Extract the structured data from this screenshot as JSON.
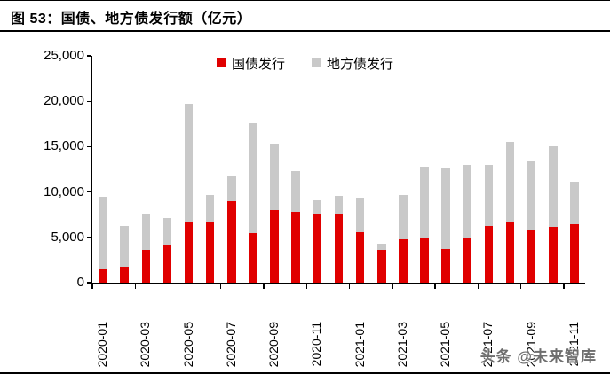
{
  "figure": {
    "title": "图 53：国债、地方债发行额（亿元）",
    "watermark": "头条 @未来智库"
  },
  "legend": [
    {
      "label": "国债发行",
      "color": "#e00000"
    },
    {
      "label": "地方债发行",
      "color": "#c9c9c9"
    }
  ],
  "chart_data": {
    "type": "bar",
    "stacked": true,
    "title": "图 53：国债、地方债发行额（亿元）",
    "unit": "亿元",
    "categories": [
      "2020-01",
      "2020-02",
      "2020-03",
      "2020-04",
      "2020-05",
      "2020-06",
      "2020-07",
      "2020-08",
      "2020-09",
      "2020-10",
      "2020-11",
      "2020-12",
      "2021-01",
      "2021-02",
      "2021-03",
      "2021-04",
      "2021-05",
      "2021-06",
      "2021-07",
      "2021-08",
      "2021-09",
      "2021-10",
      "2021-11"
    ],
    "series": [
      {
        "name": "国债发行",
        "color": "#e00000",
        "values": [
          1500,
          1800,
          3600,
          4200,
          6700,
          6750,
          8950,
          5500,
          8000,
          7800,
          7600,
          7650,
          5600,
          3600,
          4800,
          4850,
          3700,
          5000,
          6300,
          6600,
          5750,
          6200,
          6450
        ]
      },
      {
        "name": "地方债发行",
        "color": "#c9c9c9",
        "values": [
          7950,
          4500,
          3950,
          2950,
          13000,
          2950,
          2800,
          12100,
          7200,
          4500,
          1450,
          1900,
          3750,
          700,
          4900,
          7900,
          8900,
          8000,
          6700,
          8900,
          7600,
          8800,
          4650
        ]
      }
    ],
    "ylim": [
      0,
      25000
    ],
    "yticks": [
      0,
      5000,
      10000,
      15000,
      20000,
      25000
    ],
    "ytick_labels": [
      "0",
      "5,000",
      "10,000",
      "15,000",
      "20,000",
      "25,000"
    ],
    "xtick_label_every": 2,
    "grid": false,
    "legend_position": "top-center"
  }
}
